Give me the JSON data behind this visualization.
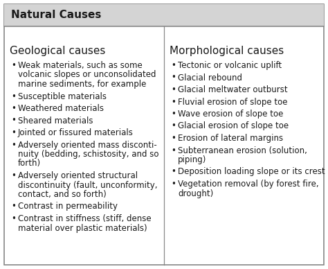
{
  "title": "Natural Causes",
  "title_bg": "#d4d4d4",
  "bg_color": "#ffffff",
  "border_color": "#888888",
  "left_header": "Geological causes",
  "right_header": "Morphological causes",
  "left_items": [
    "Weak materials, such as some\nvolcanic slopes or unconsolidated\nmarine sediments, for example",
    "Susceptible materials",
    "Weathered materials",
    "Sheared materials",
    "Jointed or fissured materials",
    "Adversely oriented mass disconti-\nnuity (bedding, schistosity, and so\nforth)",
    "Adversely oriented structural\ndiscontinuity (fault, unconformity,\ncontact, and so forth)",
    "Contrast in permeability",
    "Contrast in stiffness (stiff, dense\nmaterial over plastic materials)"
  ],
  "right_items": [
    "Tectonic or volcanic uplift",
    "Glacial rebound",
    "Glacial meltwater outburst",
    "Fluvial erosion of slope toe",
    "Wave erosion of slope toe",
    "Glacial erosion of slope toe",
    "Erosion of lateral margins",
    "Subterranean erosion (solution,\npiping)",
    "Deposition loading slope or its crest",
    "Vegetation removal (by forest fire,\ndrought)"
  ],
  "title_fontsize": 11,
  "header_fontsize": 11,
  "item_fontsize": 8.5,
  "text_color": "#1a1a1a",
  "fig_width": 4.74,
  "fig_height": 3.88,
  "dpi": 100
}
